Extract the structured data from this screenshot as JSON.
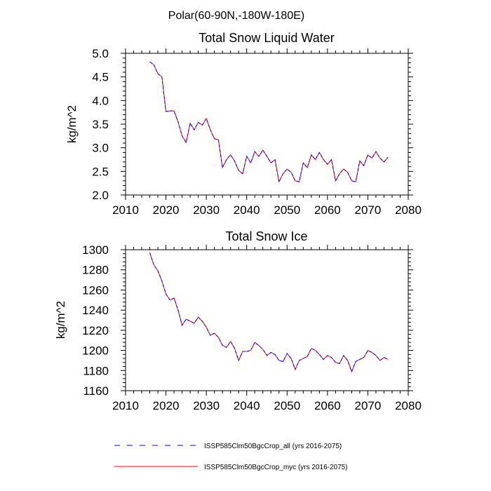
{
  "suptitle": "Polar(60-90N,-180W-180E)",
  "legend": {
    "placement": "bottom",
    "entries": [
      {
        "label": "ISSP585Clm50BgcCrop_all (yrs 2016-2075)",
        "color": "#0000ff",
        "style": "dashed"
      },
      {
        "label": "ISSP585Clm50BgcCrop_myc (yrs 2016-2075)",
        "color": "#ff0000",
        "style": "solid"
      }
    ]
  },
  "chart_data": [
    {
      "type": "line",
      "title": "Total Snow Liquid Water",
      "xlabel": "",
      "ylabel": "kg/m^2",
      "xlim": [
        2010,
        2080
      ],
      "ylim": [
        2.0,
        5.0
      ],
      "xticks": [
        2010,
        2020,
        2030,
        2040,
        2050,
        2060,
        2070,
        2080
      ],
      "yticks": [
        2.0,
        2.5,
        3.0,
        3.5,
        4.0,
        4.5,
        5.0
      ],
      "ytick_labels": [
        "2.0",
        "2.5",
        "3.0",
        "3.5",
        "4.0",
        "4.5",
        "5.0"
      ],
      "grid": false,
      "x": [
        2016,
        2017,
        2018,
        2019,
        2020,
        2021,
        2022,
        2023,
        2024,
        2025,
        2026,
        2027,
        2028,
        2029,
        2030,
        2031,
        2032,
        2033,
        2034,
        2035,
        2036,
        2037,
        2038,
        2039,
        2040,
        2041,
        2042,
        2043,
        2044,
        2045,
        2046,
        2047,
        2048,
        2049,
        2050,
        2051,
        2052,
        2053,
        2054,
        2055,
        2056,
        2057,
        2058,
        2059,
        2060,
        2061,
        2062,
        2063,
        2064,
        2065,
        2066,
        2067,
        2068,
        2069,
        2070,
        2071,
        2072,
        2073,
        2074,
        2075
      ],
      "series": [
        {
          "color": "#0000ff",
          "style": "dashed",
          "values": [
            4.82,
            4.76,
            4.57,
            4.5,
            3.77,
            3.78,
            3.78,
            3.55,
            3.25,
            3.11,
            3.52,
            3.38,
            3.54,
            3.48,
            3.62,
            3.38,
            3.19,
            3.17,
            2.58,
            2.75,
            2.85,
            2.72,
            2.52,
            2.45,
            2.82,
            2.68,
            2.92,
            2.82,
            2.95,
            2.82,
            2.68,
            2.75,
            2.28,
            2.45,
            2.55,
            2.48,
            2.3,
            2.28,
            2.68,
            2.58,
            2.85,
            2.75,
            2.9,
            2.75,
            2.65,
            2.75,
            2.3,
            2.45,
            2.55,
            2.48,
            2.3,
            2.28,
            2.72,
            2.62,
            2.85,
            2.78,
            2.92,
            2.78,
            2.7,
            2.8
          ]
        },
        {
          "color": "#ff0000",
          "style": "solid",
          "values": [
            4.82,
            4.76,
            4.57,
            4.5,
            3.77,
            3.78,
            3.78,
            3.55,
            3.25,
            3.11,
            3.52,
            3.38,
            3.54,
            3.48,
            3.62,
            3.38,
            3.19,
            3.17,
            2.58,
            2.75,
            2.85,
            2.72,
            2.52,
            2.45,
            2.82,
            2.68,
            2.92,
            2.82,
            2.95,
            2.82,
            2.68,
            2.75,
            2.28,
            2.45,
            2.55,
            2.48,
            2.3,
            2.28,
            2.68,
            2.58,
            2.85,
            2.75,
            2.9,
            2.75,
            2.65,
            2.75,
            2.3,
            2.45,
            2.55,
            2.48,
            2.3,
            2.28,
            2.72,
            2.62,
            2.85,
            2.78,
            2.92,
            2.78,
            2.7,
            2.8
          ]
        }
      ]
    },
    {
      "type": "line",
      "title": "Total Snow Ice",
      "xlabel": "",
      "ylabel": "kg/m^2",
      "xlim": [
        2010,
        2080
      ],
      "ylim": [
        1160,
        1300
      ],
      "xticks": [
        2010,
        2020,
        2030,
        2040,
        2050,
        2060,
        2070,
        2080
      ],
      "yticks": [
        1160,
        1180,
        1200,
        1220,
        1240,
        1260,
        1280,
        1300
      ],
      "ytick_labels": [
        "1160",
        "1180",
        "1200",
        "1220",
        "1240",
        "1260",
        "1280",
        "1300"
      ],
      "grid": false,
      "x": [
        2016,
        2017,
        2018,
        2019,
        2020,
        2021,
        2022,
        2023,
        2024,
        2025,
        2026,
        2027,
        2028,
        2029,
        2030,
        2031,
        2032,
        2033,
        2034,
        2035,
        2036,
        2037,
        2038,
        2039,
        2040,
        2041,
        2042,
        2043,
        2044,
        2045,
        2046,
        2047,
        2048,
        2049,
        2050,
        2051,
        2052,
        2053,
        2054,
        2055,
        2056,
        2057,
        2058,
        2059,
        2060,
        2061,
        2062,
        2063,
        2064,
        2065,
        2066,
        2067,
        2068,
        2069,
        2070,
        2071,
        2072,
        2073,
        2074,
        2075
      ],
      "series": [
        {
          "color": "#0000ff",
          "style": "dashed",
          "values": [
            1297,
            1285,
            1279,
            1269,
            1256,
            1250,
            1252,
            1240,
            1225,
            1231,
            1229,
            1227,
            1233,
            1229,
            1223,
            1215,
            1217,
            1213,
            1205,
            1203,
            1209,
            1202,
            1190,
            1199,
            1199,
            1200,
            1208,
            1205,
            1201,
            1195,
            1198,
            1196,
            1190,
            1189,
            1197,
            1192,
            1181,
            1190,
            1192,
            1194,
            1202,
            1200,
            1196,
            1191,
            1195,
            1193,
            1188,
            1187,
            1195,
            1190,
            1179,
            1189,
            1191,
            1193,
            1200,
            1198,
            1195,
            1190,
            1193,
            1191
          ]
        },
        {
          "color": "#ff0000",
          "style": "solid",
          "values": [
            1297,
            1285,
            1279,
            1269,
            1256,
            1250,
            1252,
            1240,
            1225,
            1231,
            1229,
            1227,
            1233,
            1229,
            1223,
            1215,
            1217,
            1213,
            1205,
            1203,
            1209,
            1202,
            1190,
            1199,
            1199,
            1200,
            1208,
            1205,
            1201,
            1195,
            1198,
            1196,
            1190,
            1189,
            1197,
            1192,
            1181,
            1190,
            1192,
            1194,
            1202,
            1200,
            1196,
            1191,
            1195,
            1193,
            1188,
            1187,
            1195,
            1190,
            1179,
            1189,
            1191,
            1193,
            1200,
            1198,
            1195,
            1190,
            1193,
            1191
          ]
        }
      ]
    }
  ]
}
